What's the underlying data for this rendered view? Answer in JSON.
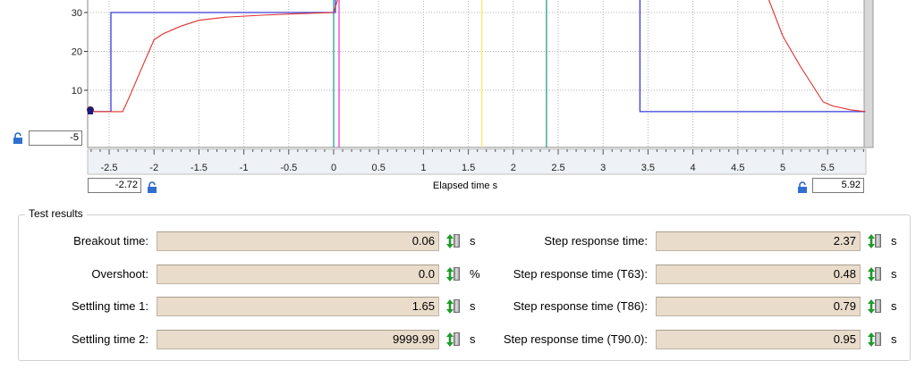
{
  "chart": {
    "x_axis_label": "Elapsed time  s",
    "x_min_value": "-2.72",
    "x_max_value": "5.92",
    "y_min_value": "-5",
    "y_ticks": [
      "10",
      "20",
      "30"
    ],
    "x_ticks": [
      "-2.5",
      "-2",
      "-1.5",
      "-1",
      "-0.5",
      "0",
      "0.5",
      "1",
      "1.5",
      "2",
      "2.5",
      "3",
      "3.5",
      "4",
      "4.5",
      "5",
      "5.5"
    ],
    "colors": {
      "setpoint": "#3b3bd9",
      "actual": "#e0302a",
      "marker_teal": "#2a9a9a",
      "marker_magenta": "#e040e0",
      "marker_yellow": "#f0f060",
      "marker_green": "#2a9a8a"
    }
  },
  "chart_data": {
    "type": "line",
    "xlabel": "Elapsed time  s",
    "xlim": [
      -2.72,
      5.92
    ],
    "ylim": [
      -5,
      35
    ],
    "series": [
      {
        "x": [
          -2.72,
          -2.48,
          -2.48,
          0.0,
          0.0,
          0.02,
          0.02,
          3.41,
          3.41,
          5.92
        ],
        "y": [
          4.5,
          4.5,
          30,
          30,
          30,
          30,
          36,
          36,
          4.5,
          4.5
        ]
      },
      {
        "x": [
          -2.72,
          -2.35,
          -2.28,
          -2.15,
          -2.0,
          -1.9,
          -1.7,
          -1.5,
          -1.2,
          -0.8,
          -0.4,
          0.0,
          0.04,
          0.08,
          4.8,
          5.0,
          5.2,
          5.45,
          5.55,
          5.75,
          5.92
        ],
        "y": [
          4.5,
          4.5,
          8,
          15,
          23,
          24.5,
          26.5,
          28,
          28.8,
          29.3,
          29.7,
          30,
          33,
          36,
          36,
          24,
          16,
          7,
          6,
          5,
          4.5
        ]
      }
    ],
    "markers_x": [
      0.0,
      0.06,
      1.65,
      2.37
    ]
  },
  "results": {
    "title": "Test results",
    "left": [
      {
        "label": "Breakout time:",
        "value": "0.06",
        "unit": "s"
      },
      {
        "label": "Overshoot:",
        "value": "0.0",
        "unit": "%"
      },
      {
        "label": "Settling time 1:",
        "value": "1.65",
        "unit": "s"
      },
      {
        "label": "Settling time 2:",
        "value": "9999.99",
        "unit": "s"
      }
    ],
    "right": [
      {
        "label": "Step response time:",
        "value": "2.37",
        "unit": "s"
      },
      {
        "label": "Step response time (T63):",
        "value": "0.48",
        "unit": "s"
      },
      {
        "label": "Step response time (T86):",
        "value": "0.79",
        "unit": "s"
      },
      {
        "label": "Step response time (T90.0):",
        "value": "0.95",
        "unit": "s"
      }
    ]
  }
}
